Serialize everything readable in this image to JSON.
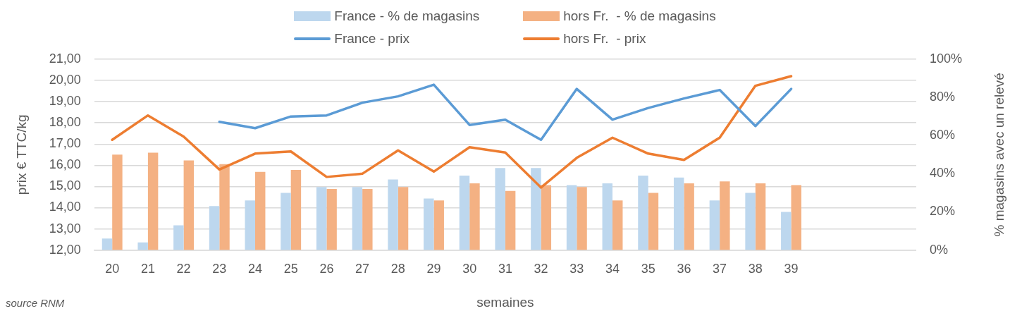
{
  "chart_data": {
    "type": "bar",
    "xlabel": "semaines",
    "ylabel": "prix € TTC/kg",
    "y2label": "% magasins avec un relevé",
    "annotations": [
      "source RNM"
    ],
    "categories": [
      "20",
      "21",
      "22",
      "23",
      "24",
      "25",
      "26",
      "27",
      "28",
      "29",
      "30",
      "31",
      "32",
      "33",
      "34",
      "35",
      "36",
      "37",
      "38",
      "39",
      null,
      null,
      null
    ],
    "series": [
      {
        "name": "France - % de magasins",
        "axis": "y2",
        "color": "#bdd7ee",
        "values": [
          6,
          4,
          13,
          23,
          26,
          30,
          33,
          33,
          37,
          27,
          39,
          43,
          43,
          34,
          35,
          39,
          38,
          26,
          30,
          20,
          null,
          null,
          null
        ]
      },
      {
        "name": "hors Fr.  - % de magasins",
        "axis": "y2",
        "color": "#f4b183",
        "values": [
          50,
          51,
          47,
          45,
          41,
          42,
          32,
          32,
          33,
          26,
          35,
          31,
          34,
          33,
          26,
          30,
          35,
          36,
          35,
          34,
          null,
          null,
          null
        ]
      },
      {
        "name": "France - prix",
        "type": "line",
        "color": "#5b9bd5",
        "values": [
          null,
          null,
          null,
          18.05,
          17.75,
          18.3,
          18.35,
          18.95,
          19.25,
          19.8,
          17.9,
          18.15,
          17.2,
          19.6,
          18.15,
          18.7,
          19.15,
          19.55,
          17.85,
          19.6,
          null,
          null,
          null
        ]
      },
      {
        "name": "hors Fr.  - prix",
        "type": "line",
        "color": "#ed7d31",
        "values": [
          17.2,
          18.35,
          17.35,
          15.8,
          16.55,
          16.65,
          15.45,
          15.6,
          16.7,
          15.7,
          16.85,
          16.6,
          14.95,
          16.35,
          17.3,
          16.55,
          16.25,
          17.3,
          19.75,
          20.2,
          null,
          null,
          null
        ]
      }
    ],
    "ylim": [
      12,
      21
    ],
    "yticks": [
      {
        "value": 12,
        "label": "12,00"
      },
      {
        "value": 13,
        "label": "13,00"
      },
      {
        "value": 14,
        "label": "14,00"
      },
      {
        "value": 15,
        "label": "15,00"
      },
      {
        "value": 16,
        "label": "16,00"
      },
      {
        "value": 17,
        "label": "17,00"
      },
      {
        "value": 18,
        "label": "18,00"
      },
      {
        "value": 19,
        "label": "19,00"
      },
      {
        "value": 20,
        "label": "20,00"
      },
      {
        "value": 21,
        "label": "21,00"
      }
    ],
    "y2lim": [
      0,
      100
    ],
    "y2ticks": [
      {
        "value": 0,
        "label": "0%"
      },
      {
        "value": 20,
        "label": "20%"
      },
      {
        "value": 40,
        "label": "40%"
      },
      {
        "value": 60,
        "label": "60%"
      },
      {
        "value": 80,
        "label": "80%"
      },
      {
        "value": 100,
        "label": "100%"
      }
    ],
    "grid": "y",
    "legend": "top",
    "marker": "none",
    "line_style": "solid"
  }
}
